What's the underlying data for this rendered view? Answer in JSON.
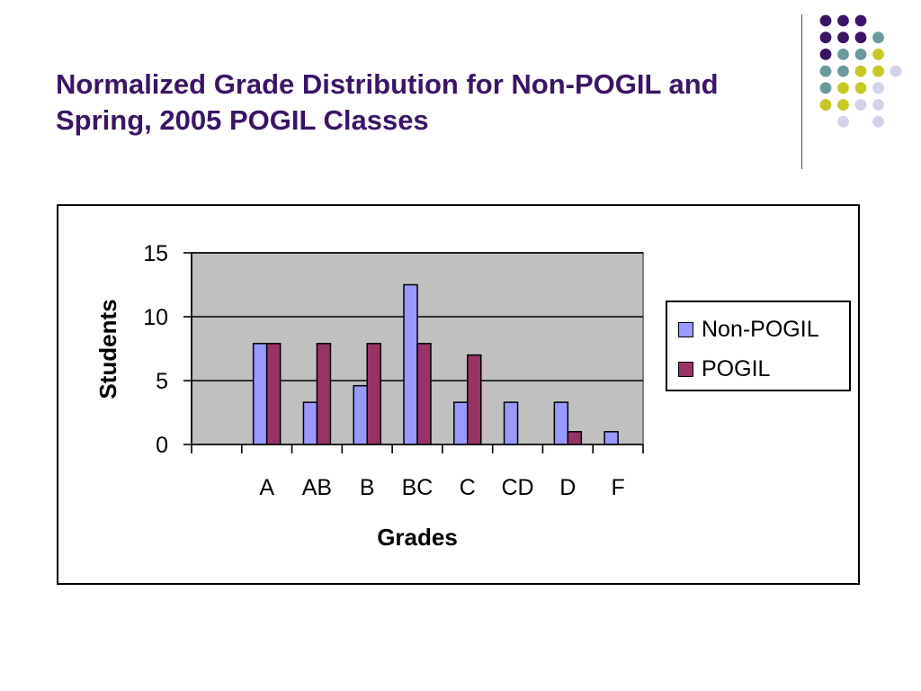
{
  "slide": {
    "title": "Normalized Grade Distribution for Non-POGIL and Spring, 2005 POGIL Classes"
  },
  "decoration": {
    "dot_colors": [
      "#3a1566",
      "#6a9a9c",
      "#c8c824",
      "#d4d2e8"
    ]
  },
  "chart_data": {
    "type": "bar",
    "title": "",
    "xlabel": "Grades",
    "ylabel": "Students",
    "categories": [
      "",
      "A",
      "AB",
      "B",
      "BC",
      "C",
      "CD",
      "D",
      "F"
    ],
    "series": [
      {
        "name": "Non-POGIL",
        "color": "#9999ff",
        "values": [
          null,
          7.9,
          3.3,
          4.6,
          12.5,
          3.3,
          3.3,
          3.3,
          1.0
        ]
      },
      {
        "name": "POGIL",
        "color": "#993366",
        "values": [
          null,
          7.9,
          7.9,
          7.9,
          7.9,
          7.0,
          null,
          1.0,
          null
        ]
      }
    ],
    "ylim": [
      0,
      15
    ],
    "yticks": [
      "0",
      "5",
      "10",
      "15"
    ],
    "grid": true,
    "plot_background": "#c0c0c0",
    "legend_position": "right"
  }
}
